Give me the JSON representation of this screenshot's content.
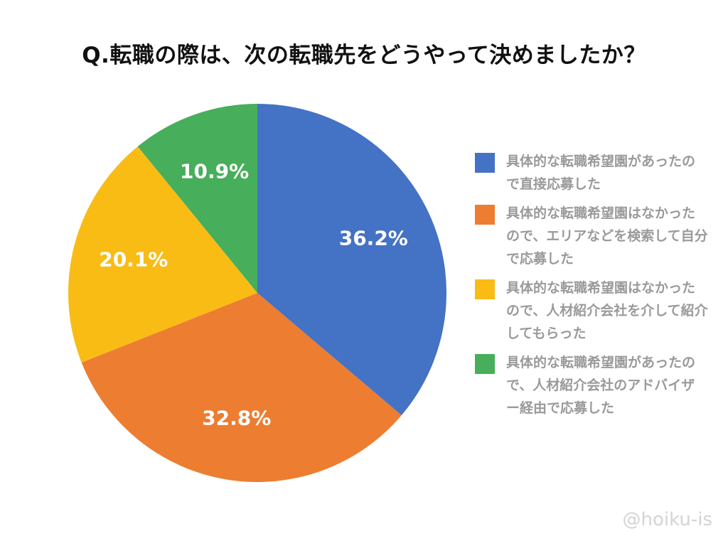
{
  "chart_data": {
    "type": "pie",
    "title": "Q.転職の際は、次の転職先をどうやって決めましたか？",
    "slices": [
      {
        "label": "具体的な転職希望園があったので直接応募した",
        "value": 36.2,
        "display": "36.2%",
        "color": "#4472c4"
      },
      {
        "label": "具体的な転職希望園はなかったので、エリアなどを検索して自分で応募した",
        "value": 32.8,
        "display": "32.8%",
        "color": "#ed7d31"
      },
      {
        "label": "具体的な転職希望園はなかったので、人材紹介会社を介して紹介してもらった",
        "value": 20.1,
        "display": "20.1%",
        "color": "#f9bc15"
      },
      {
        "label": "具体的な転職希望園があったので、人材紹介会社のアドバイザー経由で応募した",
        "value": 10.9,
        "display": "10.9%",
        "color": "#47ae5b"
      }
    ],
    "legend_position": "right"
  },
  "watermark": "@hoiku-is"
}
